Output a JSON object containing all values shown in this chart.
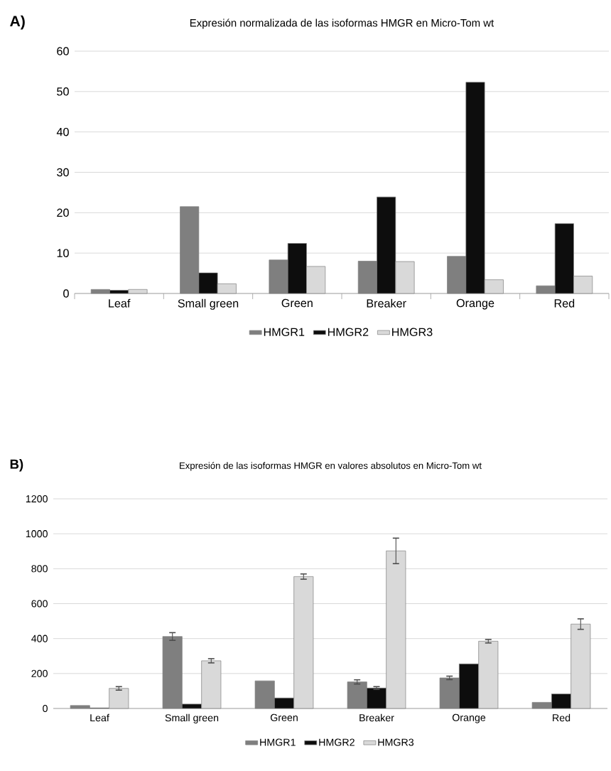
{
  "chart_data": [
    {
      "type": "bar",
      "title": "Expresión normalizada de las isoformas HMGR en Micro-Tom wt",
      "annotations": [
        "**A)**"
      ],
      "categories": [
        "Leaf",
        "Small green",
        "Green",
        "Breaker",
        "Orange",
        "Red"
      ],
      "series": [
        {
          "name": "HMGR1",
          "color": "#7f7f7f",
          "values": [
            1.0,
            21.5,
            8.3,
            8.0,
            9.2,
            1.9
          ]
        },
        {
          "name": "HMGR2",
          "color": "#0d0d0d",
          "values": [
            0.8,
            5.1,
            12.4,
            23.9,
            52.3,
            17.3
          ]
        },
        {
          "name": "HMGR3",
          "color": "#d9d9d9",
          "values": [
            1.0,
            2.4,
            6.7,
            7.9,
            3.4,
            4.3
          ]
        }
      ],
      "ylim": [
        0,
        60
      ],
      "yticks": [
        0,
        10,
        20,
        30,
        40,
        50,
        60
      ],
      "grid": "y",
      "legend": "bottom"
    },
    {
      "type": "bar",
      "title": "Expresión de las isoformas HMGR en valores absolutos en Micro-Tom wt",
      "annotations": [
        "**B)**"
      ],
      "categories": [
        "Leaf",
        "Small green",
        "Green",
        "Breaker",
        "Orange",
        "Red"
      ],
      "series": [
        {
          "name": "HMGR1",
          "color": "#7f7f7f",
          "values": [
            17,
            412,
            158,
            152,
            175,
            35
          ],
          "errors": [
            null,
            22,
            null,
            12,
            10,
            null
          ]
        },
        {
          "name": "HMGR2",
          "color": "#0d0d0d",
          "values": [
            3,
            25,
            60,
            117,
            255,
            83
          ],
          "errors": [
            null,
            null,
            null,
            8,
            null,
            null
          ]
        },
        {
          "name": "HMGR3",
          "color": "#d9d9d9",
          "values": [
            115,
            273,
            755,
            902,
            385,
            483
          ],
          "errors": [
            10,
            12,
            15,
            73,
            10,
            30
          ]
        }
      ],
      "ylim": [
        0,
        1200
      ],
      "yticks": [
        0,
        200,
        400,
        600,
        800,
        1000,
        1200
      ],
      "grid": "y",
      "legend": "bottom"
    }
  ]
}
